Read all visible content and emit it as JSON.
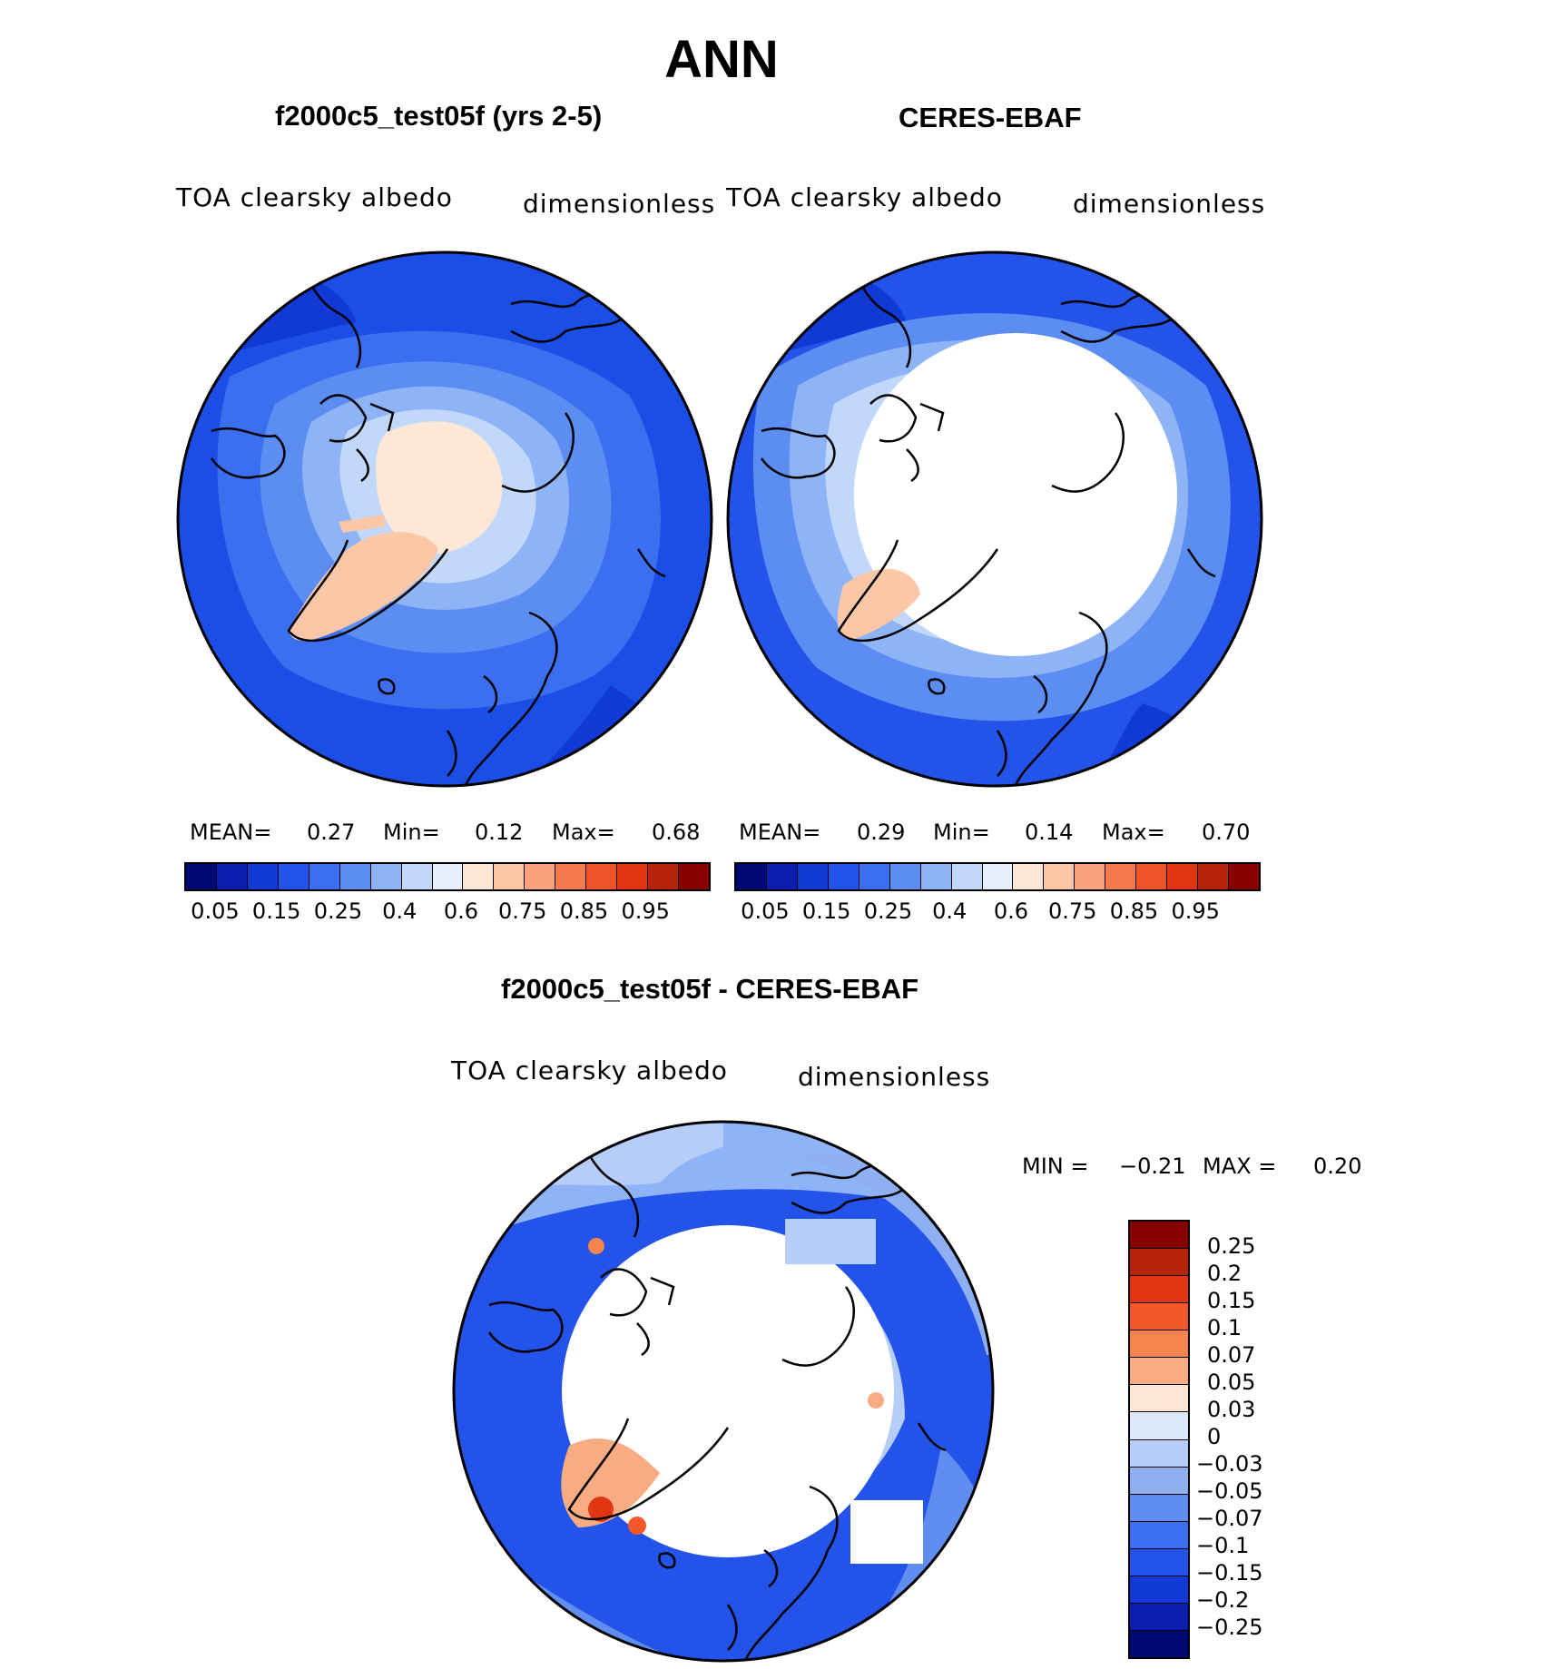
{
  "title": "ANN",
  "panels": [
    {
      "title": "f2000c5_test05f (yrs 2-5)",
      "variable": "TOA clearsky albedo",
      "units": "dimensionless",
      "mean_label": "MEAN=",
      "mean": "0.27",
      "min_label": "Min=",
      "min": "0.12",
      "max_label": "Max=",
      "max": "0.68"
    },
    {
      "title": "CERES-EBAF",
      "variable": "TOA clearsky albedo",
      "units": "dimensionless",
      "mean_label": "MEAN=",
      "mean": "0.29",
      "min_label": "Min=",
      "min": "0.14",
      "max_label": "Max=",
      "max": "0.70"
    }
  ],
  "diff": {
    "title": "f2000c5_test05f - CERES-EBAF",
    "variable": "TOA clearsky albedo",
    "units": "dimensionless",
    "min_label": "MIN =",
    "min": "−0.21",
    "max_label": "MAX =",
    "max": "0.20"
  },
  "colorbar_abs": {
    "colors": [
      "#000a75",
      "#0a1fad",
      "#1139d6",
      "#2453ea",
      "#3c6ef0",
      "#5b8df2",
      "#8eb3f7",
      "#c2d8fb",
      "#e6f0fd",
      "#fde7d7",
      "#fbc7a7",
      "#f8a17a",
      "#f57a4f",
      "#ef5328",
      "#e03612",
      "#b52309",
      "#860000"
    ],
    "ticks": [
      "0.05",
      "0.15",
      "0.25",
      "0.4",
      "0.6",
      "0.75",
      "0.85",
      "0.95"
    ]
  },
  "colorbar_diff": {
    "colors": [
      "#860000",
      "#b52309",
      "#e03612",
      "#f2582a",
      "#f6844e",
      "#f9ab82",
      "#fde6d6",
      "#dde9fb",
      "#b6cdf7",
      "#8eb0f3",
      "#5f8ef0",
      "#3c6ef0",
      "#2453ea",
      "#1139d6",
      "#0a1fad",
      "#000a75"
    ],
    "ticks": [
      "0.25",
      "0.2",
      "0.15",
      "0.1",
      "0.07",
      "0.05",
      "0.03",
      "0",
      "−0.03",
      "−0.05",
      "−0.07",
      "−0.1",
      "−0.15",
      "−0.2",
      "−0.25"
    ]
  }
}
